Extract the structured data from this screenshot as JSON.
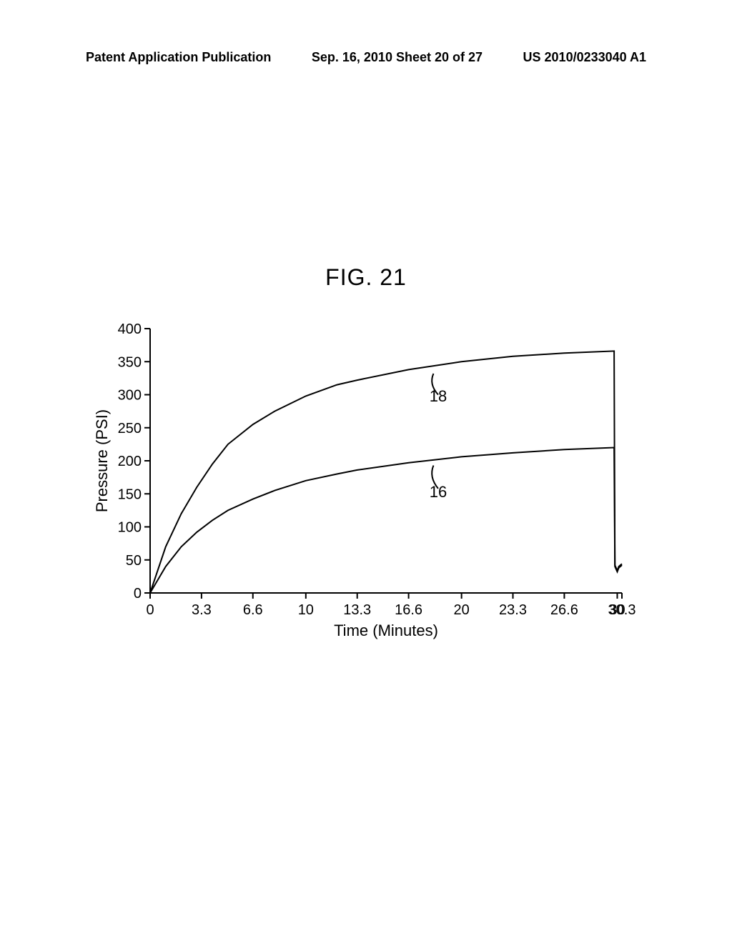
{
  "header": {
    "left": "Patent Application Publication",
    "center": "Sep. 16, 2010   Sheet 20 of 27",
    "right": "US 2010/0233040 A1"
  },
  "figure_title": "FIG. 21",
  "chart": {
    "type": "line",
    "xlabel": "Time (Minutes)",
    "ylabel": "Pressure (PSI)",
    "xlim": [
      0,
      30.3
    ],
    "ylim": [
      0,
      400
    ],
    "xticks": [
      "0",
      "3.3",
      "6.6",
      "10",
      "13.3",
      "16.6",
      "20",
      "23.3",
      "26.6",
      "30",
      "30.3"
    ],
    "xtick_values": [
      0,
      3.3,
      6.6,
      10,
      13.3,
      16.6,
      20,
      23.3,
      26.6,
      30,
      30.3
    ],
    "yticks": [
      "0",
      "50",
      "100",
      "150",
      "200",
      "250",
      "300",
      "350",
      "400"
    ],
    "ytick_values": [
      0,
      50,
      100,
      150,
      200,
      250,
      300,
      350,
      400
    ],
    "background_color": "#ffffff",
    "line_color": "#000000",
    "line_width": 2,
    "label_fontsize": 22,
    "tick_fontsize": 20,
    "series": [
      {
        "label": "18",
        "label_x": 18.5,
        "label_y": 290,
        "points": [
          [
            0,
            0
          ],
          [
            1,
            70
          ],
          [
            2,
            120
          ],
          [
            3,
            160
          ],
          [
            4,
            195
          ],
          [
            5,
            225
          ],
          [
            6.6,
            255
          ],
          [
            8,
            275
          ],
          [
            10,
            298
          ],
          [
            12,
            315
          ],
          [
            13.3,
            322
          ],
          [
            16.6,
            338
          ],
          [
            20,
            350
          ],
          [
            23.3,
            358
          ],
          [
            26.6,
            363
          ],
          [
            29.8,
            366
          ],
          [
            29.85,
            40
          ],
          [
            30,
            32
          ],
          [
            30.1,
            38
          ],
          [
            30.3,
            42
          ]
        ]
      },
      {
        "label": "16",
        "label_x": 18.5,
        "label_y": 145,
        "points": [
          [
            0,
            0
          ],
          [
            1,
            40
          ],
          [
            2,
            70
          ],
          [
            3,
            92
          ],
          [
            4,
            110
          ],
          [
            5,
            125
          ],
          [
            6.6,
            142
          ],
          [
            8,
            155
          ],
          [
            10,
            170
          ],
          [
            12,
            180
          ],
          [
            13.3,
            186
          ],
          [
            16.6,
            197
          ],
          [
            20,
            206
          ],
          [
            23.3,
            212
          ],
          [
            26.6,
            217
          ],
          [
            29.8,
            220
          ],
          [
            29.85,
            42
          ],
          [
            30,
            34
          ],
          [
            30.1,
            40
          ],
          [
            30.3,
            44
          ]
        ]
      }
    ],
    "callouts": [
      {
        "label": "18",
        "from_x": 18.2,
        "from_y": 332,
        "to_x": 18.5,
        "to_y": 300
      },
      {
        "label": "16",
        "from_x": 18.2,
        "from_y": 193,
        "to_x": 18.5,
        "to_y": 158
      }
    ]
  }
}
